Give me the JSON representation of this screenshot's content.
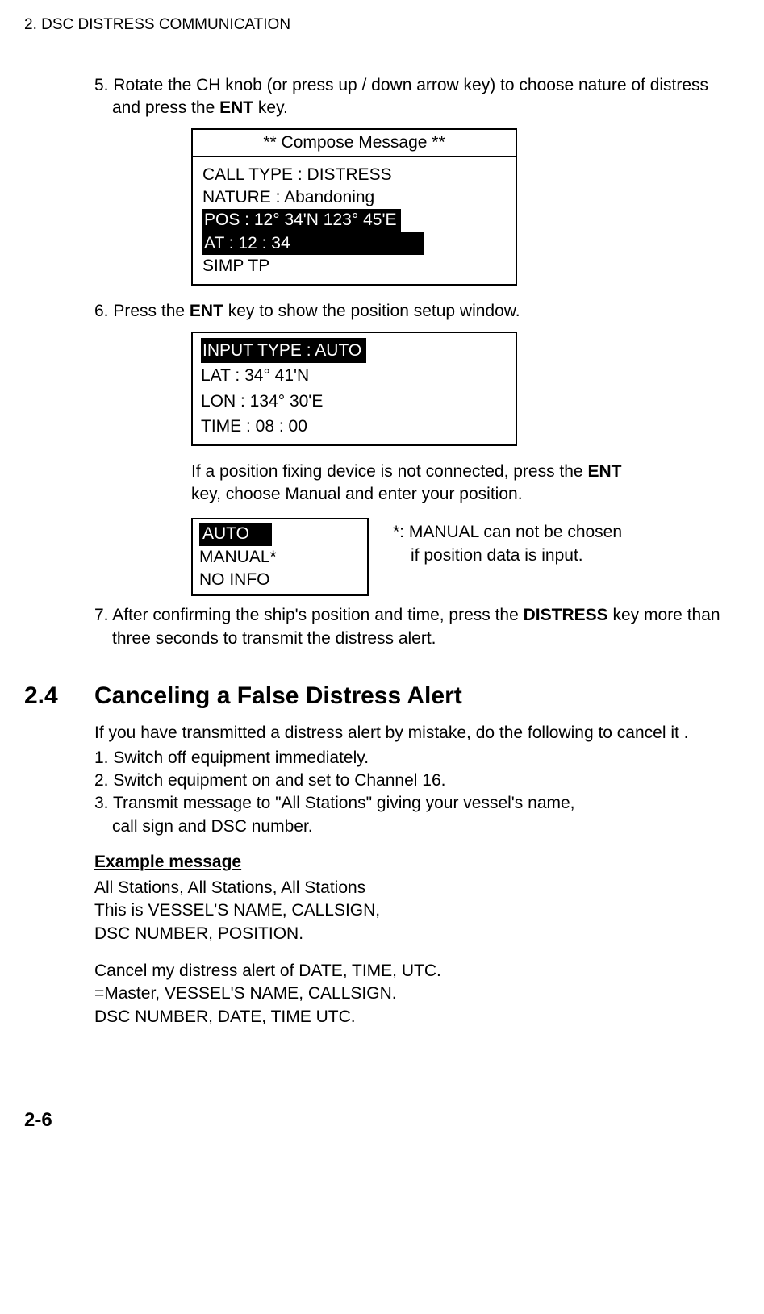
{
  "page": {
    "header": "2. DSC DISTRESS COMMUNICATION",
    "pageNumber": "2-6"
  },
  "step5": {
    "prefix": "5. ",
    "text1": "Rotate the CH knob (or press up / down arrow key) to choose nature of distress and press the ",
    "ent": "ENT",
    "text2": " key."
  },
  "compose": {
    "title": "** Compose Message **",
    "callType": "CALL TYPE : DISTRESS",
    "nature": "NATURE : Abandoning",
    "pos": "POS : 12°  34'N  123° 45'E",
    "at": "AT : 12 : 34",
    "simp": "SIMP TP"
  },
  "step6": {
    "prefix": "6. ",
    "text1": "Press the ",
    "ent": "ENT",
    "text2": " key to show the position setup window."
  },
  "inputBox": {
    "inputType": " INPUT TYPE : AUTO ",
    "lat": "LAT : 34°  41'N",
    "lon": "LON : 134°  30'E",
    "time": "TIME : 08 : 00"
  },
  "subnote": {
    "line1": "If a position fixing device is not connected, press the ",
    "ent": "ENT",
    "line2": " key, choose Manual and enter your position."
  },
  "optBox": {
    "auto": " AUTO",
    "manual": "MANUAL*",
    "noinfo": "NO INFO"
  },
  "sideNote": {
    "line1": "*: MANUAL can not be chosen",
    "line2": "if position data is input."
  },
  "step7": {
    "prefix": "7. ",
    "text1": "After confirming the ship's position and time, press the ",
    "distress": "DISTRESS",
    "text2": " key more than three seconds to transmit the distress alert."
  },
  "section24": {
    "number": "2.4",
    "title": "Canceling a False Distress Alert",
    "intro": "If you have transmitted a distress alert by mistake, do the following to cancel it .",
    "item1": "1. Switch off equipment immediately.",
    "item2": "2. Switch equipment on and set to Channel 16.",
    "item3a": "3. Transmit message to \"All Stations\" giving your vessel's name,",
    "item3b": "call sign and DSC number.",
    "exampleTitle": "Example message",
    "msg1_l1": "All Stations, All Stations, All Stations",
    "msg1_l2": "This is VESSEL'S NAME, CALLSIGN,",
    "msg1_l3": "DSC NUMBER, POSITION.",
    "msg2_l1": "Cancel my distress alert of DATE, TIME, UTC.",
    "msg2_l2": "=Master, VESSEL'S NAME, CALLSIGN.",
    "msg2_l3": "DSC NUMBER, DATE, TIME UTC."
  }
}
